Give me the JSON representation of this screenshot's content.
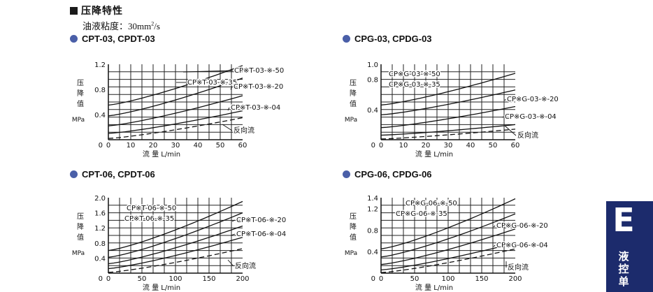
{
  "section": {
    "title": "压降特性",
    "viscosity_prefix": "油液粘度：30mm",
    "viscosity_sup": "2",
    "viscosity_suffix": "/s"
  },
  "tab": {
    "letter": "E",
    "text": "液控单"
  },
  "chart_data": [
    {
      "type": "line",
      "title": "CPT-03, CPDT-03",
      "ylabel": "压降值",
      "yunit": "MPa",
      "xlabel": "流 量  L/min",
      "xlim": [
        0,
        60
      ],
      "ylim": [
        0,
        1.2
      ],
      "xticks": [
        0,
        10,
        20,
        30,
        40,
        50,
        60
      ],
      "yticks": [
        0.4,
        0.8,
        1.2
      ],
      "grid": true,
      "series": [
        {
          "name": "CP※T-03-※-50",
          "x": [
            0,
            60
          ],
          "y": [
            0.55,
            1.18
          ]
        },
        {
          "name": "CP※T-03-※-35",
          "x": [
            0,
            60
          ],
          "y": [
            0.38,
            0.98
          ]
        },
        {
          "name": "CP※T-03-※-20",
          "x": [
            0,
            60
          ],
          "y": [
            0.22,
            0.7
          ]
        },
        {
          "name": "CP※T-03-※-04",
          "x": [
            0,
            60
          ],
          "y": [
            0.1,
            0.46
          ]
        },
        {
          "name": "反向流",
          "dashed": true,
          "x": [
            0,
            60
          ],
          "y": [
            0.02,
            0.35
          ]
        }
      ]
    },
    {
      "type": "line",
      "title": "CPG-03, CPDG-03",
      "ylabel": "压降值",
      "yunit": "MPa",
      "xlabel": "流 量  L/min",
      "xlim": [
        0,
        60
      ],
      "ylim": [
        0,
        1.0
      ],
      "xticks": [
        0,
        10,
        20,
        30,
        40,
        50,
        60
      ],
      "yticks": [
        0.4,
        0.8,
        1.0
      ],
      "grid": true,
      "series": [
        {
          "name": "CP※G-03-※-50",
          "x": [
            0,
            60
          ],
          "y": [
            0.46,
            0.88
          ]
        },
        {
          "name": "CP※G-03-※-35",
          "x": [
            0,
            60
          ],
          "y": [
            0.33,
            0.66
          ]
        },
        {
          "name": "CP※G-03-※-20",
          "x": [
            0,
            60
          ],
          "y": [
            0.16,
            0.44
          ]
        },
        {
          "name": "CP※G-03-※-04",
          "x": [
            0,
            60
          ],
          "y": [
            0.06,
            0.2
          ]
        },
        {
          "name": "反向流",
          "dashed": true,
          "x": [
            0,
            60
          ],
          "y": [
            0.01,
            0.14
          ]
        }
      ]
    },
    {
      "type": "line",
      "title": "CPT-06, CPDT-06",
      "ylabel": "压降值",
      "yunit": "MPa",
      "xlabel": "流 量  L/min",
      "xlim": [
        0,
        200
      ],
      "ylim": [
        0,
        2.0
      ],
      "xticks": [
        0,
        50,
        100,
        150,
        200
      ],
      "yticks": [
        0.4,
        0.8,
        1.2,
        1.6,
        2.0
      ],
      "grid": true,
      "series": [
        {
          "name": "CP※T-06-※-50",
          "x": [
            0,
            200
          ],
          "y": [
            0.6,
            1.9
          ]
        },
        {
          "name": "CP※T-06-※-35",
          "x": [
            0,
            200
          ],
          "y": [
            0.42,
            1.6
          ]
        },
        {
          "name": "CP※T-06-※-20",
          "x": [
            0,
            200
          ],
          "y": [
            0.25,
            1.25
          ]
        },
        {
          "name": "CP※T-06-※-04",
          "x": [
            0,
            200
          ],
          "y": [
            0.12,
            0.95
          ]
        },
        {
          "name": "反向流",
          "dashed": true,
          "x": [
            0,
            200
          ],
          "y": [
            0.02,
            0.65
          ]
        }
      ]
    },
    {
      "type": "line",
      "title": "CPG-06, CPDG-06",
      "ylabel": "压降值",
      "yunit": "MPa",
      "xlabel": "流 量  L/min",
      "xlim": [
        0,
        200
      ],
      "ylim": [
        0,
        1.4
      ],
      "xticks": [
        0,
        50,
        100,
        150,
        200
      ],
      "yticks": [
        0.4,
        0.8,
        1.2,
        1.4
      ],
      "grid": true,
      "series": [
        {
          "name": "CP※G-06-※-50",
          "x": [
            0,
            200
          ],
          "y": [
            0.45,
            1.38
          ]
        },
        {
          "name": "CP※G-06-※-35",
          "x": [
            0,
            200
          ],
          "y": [
            0.3,
            1.1
          ]
        },
        {
          "name": "CP※G-06-※-20",
          "x": [
            0,
            200
          ],
          "y": [
            0.16,
            0.82
          ]
        },
        {
          "name": "CP※G-06-※-04",
          "x": [
            0,
            200
          ],
          "y": [
            0.06,
            0.56
          ]
        },
        {
          "name": "反向流",
          "dashed": true,
          "x": [
            0,
            200
          ],
          "y": [
            0.01,
            0.45
          ]
        }
      ]
    }
  ]
}
